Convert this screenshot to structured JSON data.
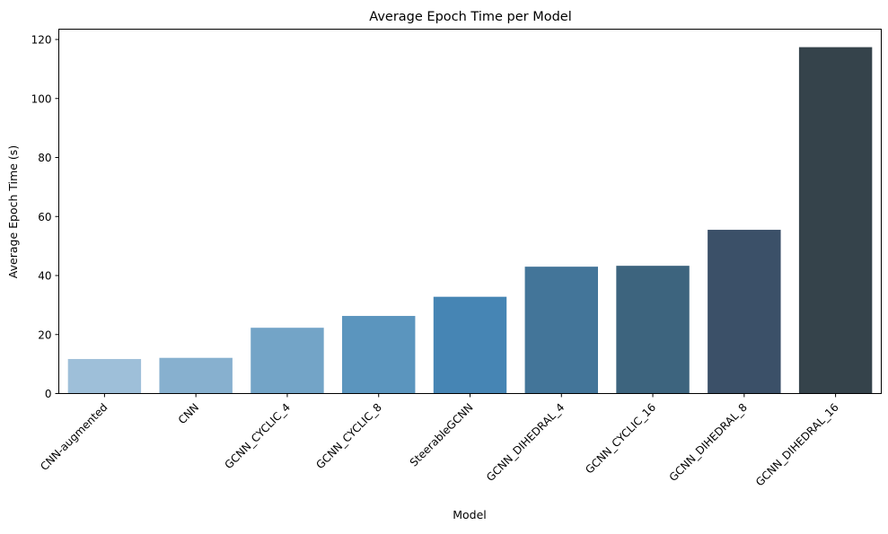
{
  "chart_data": {
    "type": "bar",
    "title": "Average Epoch Time per Model",
    "xlabel": "Model",
    "ylabel": "Average Epoch Time (s)",
    "categories": [
      "CNN-augmented",
      "CNN",
      "GCNN_CYCLIC_4",
      "GCNN_CYCLIC_8",
      "SteerableGCNN",
      "GCNN_DIHEDRAL_4",
      "GCNN_CYCLIC_16",
      "GCNN_DIHEDRAL_8",
      "GCNN_DIHEDRAL_16"
    ],
    "values": [
      11.7,
      12.1,
      22.3,
      26.3,
      32.8,
      43.0,
      43.3,
      55.5,
      117.4
    ],
    "colors": [
      "#9ebfd9",
      "#87b0cf",
      "#73a4c7",
      "#5b95be",
      "#4685b4",
      "#437599",
      "#3d647e",
      "#3b5068",
      "#35434b"
    ],
    "ylim": [
      0,
      123.5
    ],
    "yticks": [
      0,
      20,
      40,
      60,
      80,
      100,
      120
    ],
    "grid": false,
    "legend": "none"
  }
}
